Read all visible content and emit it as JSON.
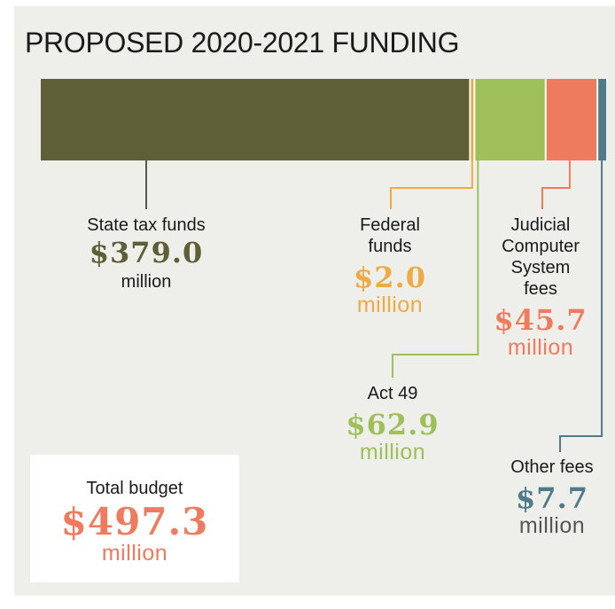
{
  "title": "PROPOSED 2020-2021 FUNDING",
  "colors": {
    "state": "#5e5e37",
    "federal": "#eeaa44",
    "act49": "#9fbf5a",
    "jcs": "#ee7b5e",
    "other": "#4f7a8a",
    "total": "#ee7b5e",
    "text": "#1a1a1a"
  },
  "chart_data": {
    "type": "bar",
    "orientation": "horizontal-stacked",
    "title": "PROPOSED 2020-2021 FUNDING",
    "unit": "million",
    "series": [
      {
        "name": "State tax funds",
        "value": 379.0,
        "amount": "$379.0",
        "color": "#5e5e37"
      },
      {
        "name": "Federal funds",
        "value": 2.0,
        "amount": "$2.0",
        "color": "#eeaa44"
      },
      {
        "name": "Act 49",
        "value": 62.9,
        "amount": "$62.9",
        "color": "#9fbf5a"
      },
      {
        "name": "Judicial Computer System fees",
        "value": 45.7,
        "amount": "$45.7",
        "color": "#ee7b5e"
      },
      {
        "name": "Other fees",
        "value": 7.7,
        "amount": "$7.7",
        "color": "#4f7a8a"
      }
    ],
    "total": {
      "label": "Total budget",
      "value": 497.3,
      "amount": "$497.3"
    }
  },
  "labels": {
    "state": {
      "lines": [
        "State tax funds"
      ],
      "amount": "$379.0",
      "unit": "million"
    },
    "federal": {
      "lines": [
        "Federal",
        "funds"
      ],
      "amount": "$2.0",
      "unit": "million"
    },
    "jcs": {
      "lines": [
        "Judicial",
        "Computer",
        "System",
        "fees"
      ],
      "amount": "$45.7",
      "unit": "million"
    },
    "act49": {
      "lines": [
        "Act 49"
      ],
      "amount": "$62.9",
      "unit": "million"
    },
    "other": {
      "lines": [
        "Other fees"
      ],
      "amount": "$7.7",
      "unit": "million"
    }
  },
  "total_box": {
    "label": "Total budget",
    "amount": "$497.3",
    "unit": "million"
  }
}
